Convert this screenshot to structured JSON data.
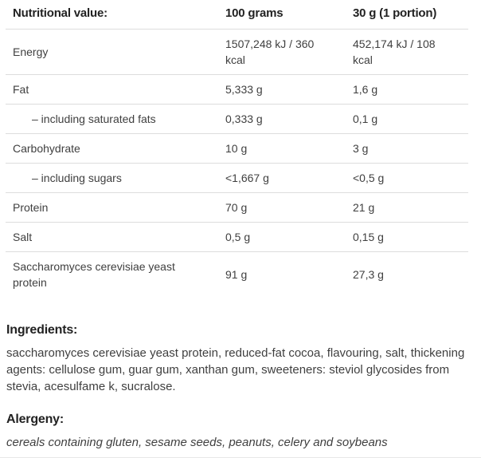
{
  "table": {
    "headers": [
      "Nutritional value:",
      "100 grams",
      "30 g (1 portion)"
    ],
    "rows": [
      {
        "label": "Energy",
        "per100": "1507,248 kJ / 360 kcal",
        "portion": "452,174 kJ / 108 kcal",
        "indent": false
      },
      {
        "label": "Fat",
        "per100": "5,333 g",
        "portion": "1,6 g",
        "indent": false
      },
      {
        "label": "– including saturated fats",
        "per100": "0,333 g",
        "portion": "0,1 g",
        "indent": true
      },
      {
        "label": "Carbohydrate",
        "per100": "10 g",
        "portion": "3 g",
        "indent": false
      },
      {
        "label": "– including sugars",
        "per100": "<1,667 g",
        "portion": "<0,5 g",
        "indent": true
      },
      {
        "label": "Protein",
        "per100": "70 g",
        "portion": "21 g",
        "indent": false
      },
      {
        "label": "Salt",
        "per100": "0,5 g",
        "portion": "0,15 g",
        "indent": false
      },
      {
        "label": "Saccharomyces cerevisiae yeast protein",
        "per100": "91 g",
        "portion": "27,3 g",
        "indent": false
      }
    ]
  },
  "ingredients": {
    "heading": "Ingredients:",
    "text": "saccharomyces cerevisiae yeast protein, reduced-fat cocoa, flavouring, salt, thickening agents: cellulose gum, guar gum, xanthan gum, sweeteners: steviol glycosides from stevia, acesulfame k, sucralose."
  },
  "allergens": {
    "heading": "Alergeny:",
    "text": "cereals containing gluten, sesame seeds, peanuts, celery and soybeans"
  },
  "colors": {
    "border-color": "#dddddd",
    "heading-color": "#222222",
    "text-color": "#3f3f3f",
    "bg-color": "#ffffff"
  }
}
